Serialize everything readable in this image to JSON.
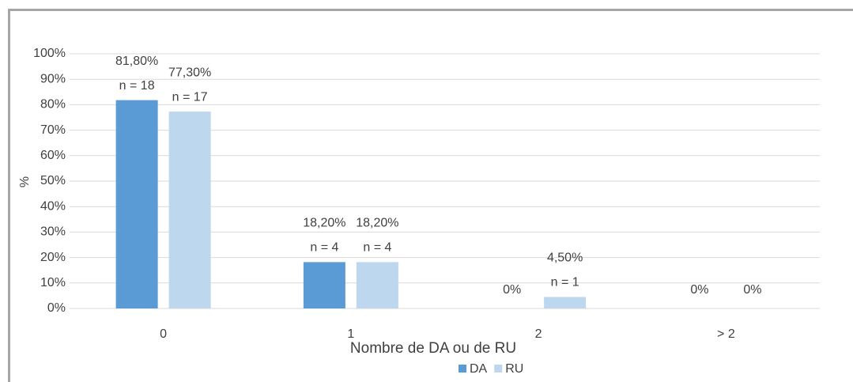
{
  "chart_data": {
    "type": "bar",
    "x_label": "Nombre de DA ou de RU",
    "y_label": "%",
    "categories": [
      "0",
      "1",
      "2",
      "> 2"
    ],
    "series": [
      {
        "name": "DA",
        "color": "#5b9bd5",
        "values": [
          81.8,
          18.2,
          0,
          0
        ],
        "value_labels": [
          "81,80%",
          "18,20%",
          "0%",
          "0%"
        ],
        "n_labels": [
          "n = 18",
          "n = 4",
          null,
          null
        ]
      },
      {
        "name": "RU",
        "color": "#bdd7ee",
        "values": [
          77.3,
          18.2,
          4.5,
          0
        ],
        "value_labels": [
          "77,30%",
          "18,20%",
          "4,50%",
          "0%"
        ],
        "n_labels": [
          "n = 17",
          "n = 4",
          "n = 1",
          null
        ]
      }
    ],
    "ylim": [
      0,
      100
    ],
    "yticks": [
      {
        "value": 0,
        "label": "0%"
      },
      {
        "value": 10,
        "label": "10%"
      },
      {
        "value": 20,
        "label": "20%"
      },
      {
        "value": 30,
        "label": "30%"
      },
      {
        "value": 40,
        "label": "40%"
      },
      {
        "value": 50,
        "label": "50%"
      },
      {
        "value": 60,
        "label": "60%"
      },
      {
        "value": 70,
        "label": "70%"
      },
      {
        "value": 80,
        "label": "80%"
      },
      {
        "value": 90,
        "label": "90%"
      },
      {
        "value": 100,
        "label": "100%"
      }
    ],
    "grid": true,
    "legend": "bottom"
  }
}
